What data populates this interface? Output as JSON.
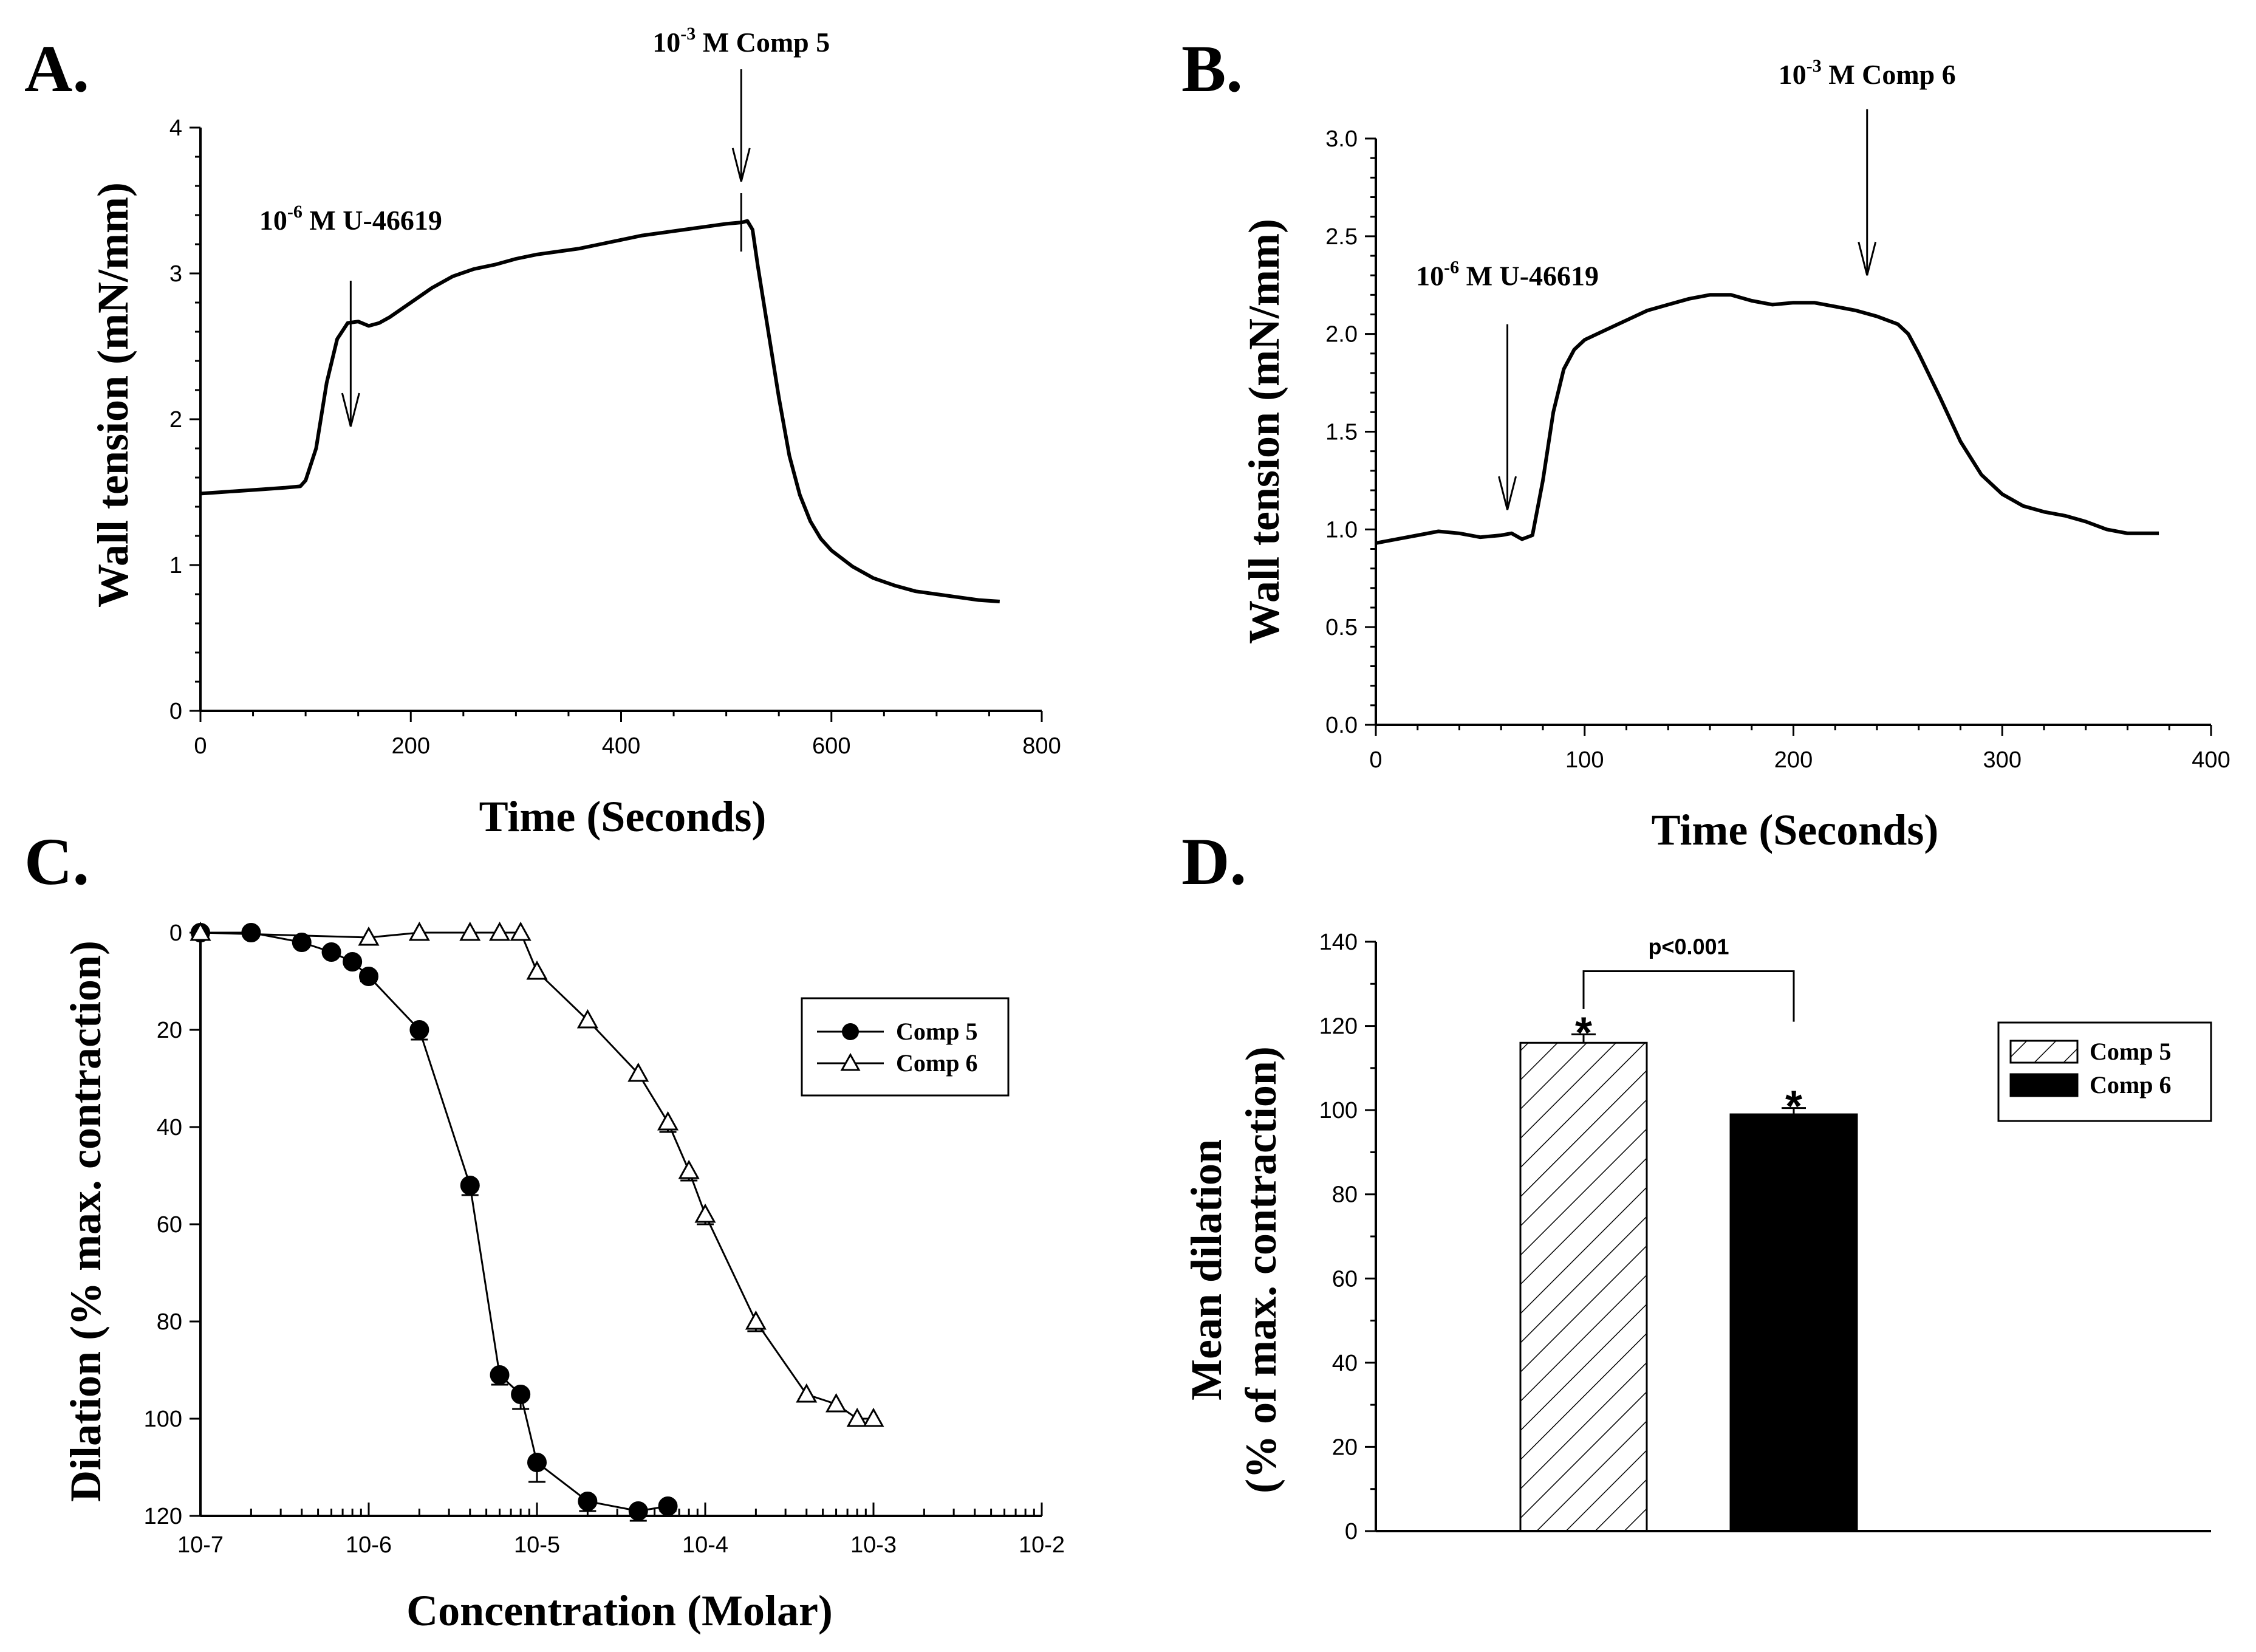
{
  "panels": {
    "A": {
      "letter": "A."
    },
    "B": {
      "letter": "B."
    },
    "C": {
      "letter": "C."
    },
    "D": {
      "letter": "D."
    }
  },
  "chart_data": [
    {
      "id": "A",
      "type": "line",
      "xlabel": "Time (Seconds)",
      "ylabel": "Wall tension (mN/mm)",
      "xlim": [
        0,
        800
      ],
      "ylim": [
        0,
        4
      ],
      "xticks": [
        0,
        200,
        400,
        600,
        800
      ],
      "yticks": [
        0,
        1,
        2,
        3,
        4
      ],
      "x": [
        0,
        20,
        40,
        60,
        80,
        95,
        100,
        110,
        120,
        130,
        140,
        150,
        160,
        170,
        180,
        200,
        220,
        240,
        260,
        280,
        300,
        320,
        340,
        360,
        380,
        400,
        420,
        440,
        460,
        480,
        500,
        515,
        520,
        525,
        530,
        540,
        550,
        560,
        570,
        580,
        590,
        600,
        620,
        640,
        660,
        680,
        700,
        720,
        740,
        760
      ],
      "y": [
        1.49,
        1.5,
        1.51,
        1.52,
        1.53,
        1.54,
        1.58,
        1.8,
        2.25,
        2.55,
        2.66,
        2.67,
        2.64,
        2.66,
        2.7,
        2.8,
        2.9,
        2.98,
        3.03,
        3.06,
        3.1,
        3.13,
        3.15,
        3.17,
        3.2,
        3.23,
        3.26,
        3.28,
        3.3,
        3.32,
        3.34,
        3.35,
        3.36,
        3.3,
        3.05,
        2.6,
        2.15,
        1.75,
        1.48,
        1.3,
        1.18,
        1.1,
        0.99,
        0.91,
        0.86,
        0.82,
        0.8,
        0.78,
        0.76,
        0.75
      ],
      "annotations": [
        {
          "base": "10",
          "exp": "-6",
          "rest": " M U-46619",
          "x": 88,
          "y": 1.95
        },
        {
          "base": "10",
          "exp": "-3",
          "rest": " M Comp 5",
          "x": 520,
          "y": 3.63
        }
      ]
    },
    {
      "id": "B",
      "type": "line",
      "xlabel": "Time (Seconds)",
      "ylabel": "Wall tension (mN/mm)",
      "xlim": [
        0,
        400
      ],
      "ylim": [
        0,
        3
      ],
      "xticks": [
        0,
        100,
        200,
        300,
        400
      ],
      "yticks": [
        0.0,
        0.5,
        1.0,
        1.5,
        2.0,
        2.5,
        3.0
      ],
      "x": [
        0,
        10,
        20,
        30,
        40,
        50,
        60,
        65,
        70,
        75,
        80,
        85,
        90,
        95,
        100,
        110,
        120,
        130,
        140,
        150,
        160,
        170,
        180,
        190,
        200,
        210,
        220,
        230,
        240,
        250,
        255,
        260,
        270,
        280,
        290,
        300,
        310,
        320,
        330,
        340,
        350,
        360,
        370,
        375
      ],
      "y": [
        0.93,
        0.95,
        0.97,
        0.99,
        0.98,
        0.96,
        0.97,
        0.98,
        0.95,
        0.97,
        1.25,
        1.6,
        1.82,
        1.92,
        1.97,
        2.02,
        2.07,
        2.12,
        2.15,
        2.18,
        2.2,
        2.2,
        2.17,
        2.15,
        2.16,
        2.16,
        2.14,
        2.12,
        2.09,
        2.05,
        2.0,
        1.9,
        1.68,
        1.45,
        1.28,
        1.18,
        1.12,
        1.09,
        1.07,
        1.04,
        1.0,
        0.98,
        0.98,
        0.98
      ],
      "annotations": [
        {
          "base": "10",
          "exp": "-6",
          "rest": " M U-46619",
          "x": 63,
          "y": 1.1
        },
        {
          "base": "10",
          "exp": "-3",
          "rest": " M Comp 6",
          "x": 244,
          "y": 2.3
        }
      ]
    },
    {
      "id": "C",
      "type": "scatter",
      "xlabel": "Concentration (Molar)",
      "ylabel": "Dilation (% max. contraction)",
      "xscale": "log",
      "xlim": [
        1e-07,
        0.01
      ],
      "ylim": [
        120,
        0
      ],
      "y_inverted": true,
      "xtick_labels": [
        "10-7",
        "10-6",
        "10-5",
        "10-4",
        "10-3",
        "10-2"
      ],
      "yticks": [
        0,
        20,
        40,
        60,
        80,
        100,
        120
      ],
      "legend_position": "right",
      "series": [
        {
          "name": "Comp 5",
          "marker": "filled-circle",
          "x": [
            1e-07,
            2e-07,
            4e-07,
            6e-07,
            8e-07,
            1e-06,
            2e-06,
            4e-06,
            6e-06,
            8e-06,
            1e-05,
            2e-05,
            4e-05,
            6e-05
          ],
          "y": [
            0,
            0,
            2,
            4,
            6,
            9,
            20,
            52,
            91,
            95,
            109,
            117,
            119,
            118
          ],
          "err": [
            0,
            0,
            0,
            0,
            0,
            1,
            2,
            2,
            2,
            3,
            4,
            2,
            2,
            1
          ]
        },
        {
          "name": "Comp 6",
          "marker": "open-triangle",
          "x": [
            1e-07,
            1e-06,
            2e-06,
            4e-06,
            6e-06,
            8e-06,
            1e-05,
            2e-05,
            4e-05,
            6e-05,
            8e-05,
            0.0001,
            0.0002,
            0.0004,
            0.0006,
            0.0008,
            0.001
          ],
          "y": [
            0,
            1,
            0,
            0,
            0,
            0,
            8,
            18,
            29,
            39,
            49,
            58,
            80,
            95,
            97,
            100,
            100
          ],
          "err": [
            0,
            0,
            0,
            0,
            0,
            0,
            1,
            1,
            1,
            2,
            2,
            2,
            2,
            1,
            1,
            1,
            1
          ]
        }
      ]
    },
    {
      "id": "D",
      "type": "bar",
      "ylabel_line1": "Mean dilation",
      "ylabel_line2": "(% of max. contraction)",
      "ylim": [
        0,
        140
      ],
      "yticks": [
        0,
        20,
        40,
        60,
        80,
        100,
        120,
        140
      ],
      "legend_position": "top-right",
      "series": [
        {
          "name": "Comp 5",
          "fill": "hatched",
          "value": 116,
          "err": 2,
          "star": "*"
        },
        {
          "name": "Comp 6",
          "fill": "solid",
          "value": 99,
          "err": 1.5,
          "star": "*"
        }
      ],
      "significance": {
        "label": "p<0.001",
        "y": 133
      }
    }
  ]
}
